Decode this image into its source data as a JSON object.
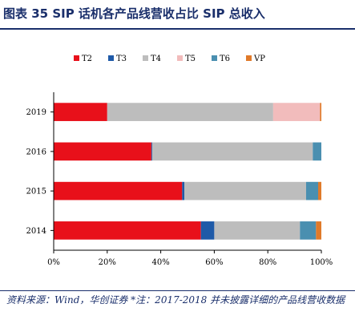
{
  "figure": {
    "title": "图表 35   SIP 话机各产品线营收占比 SIP 总收入",
    "source": "资料来源：Wind，华创证券 *注：2017-2018 并未披露详细的产品线营收数据"
  },
  "chart_data": {
    "type": "bar",
    "orientation": "horizontal",
    "stacked": true,
    "categories": [
      "2019",
      "2016",
      "2015",
      "2014"
    ],
    "series": [
      {
        "name": "T2",
        "color": "#e8101a",
        "values": [
          20,
          36.5,
          48,
          55
        ]
      },
      {
        "name": "T3",
        "color": "#1f5aa8",
        "values": [
          0,
          0.3,
          0.8,
          5
        ]
      },
      {
        "name": "T4",
        "color": "#bdbdbd",
        "values": [
          62,
          60,
          45.5,
          32
        ]
      },
      {
        "name": "T5",
        "color": "#f2bcbc",
        "values": [
          17.5,
          0,
          0,
          0
        ]
      },
      {
        "name": "T6",
        "color": "#4a8fb0",
        "values": [
          0,
          3.2,
          4.5,
          6
        ]
      },
      {
        "name": "VP",
        "color": "#e07a2a",
        "values": [
          0.5,
          0,
          1.2,
          2
        ]
      }
    ],
    "x_ticks": [
      "0%",
      "20%",
      "40%",
      "60%",
      "80%",
      "100%"
    ],
    "xlim": [
      0,
      100
    ],
    "legend": "top",
    "grid": false
  }
}
